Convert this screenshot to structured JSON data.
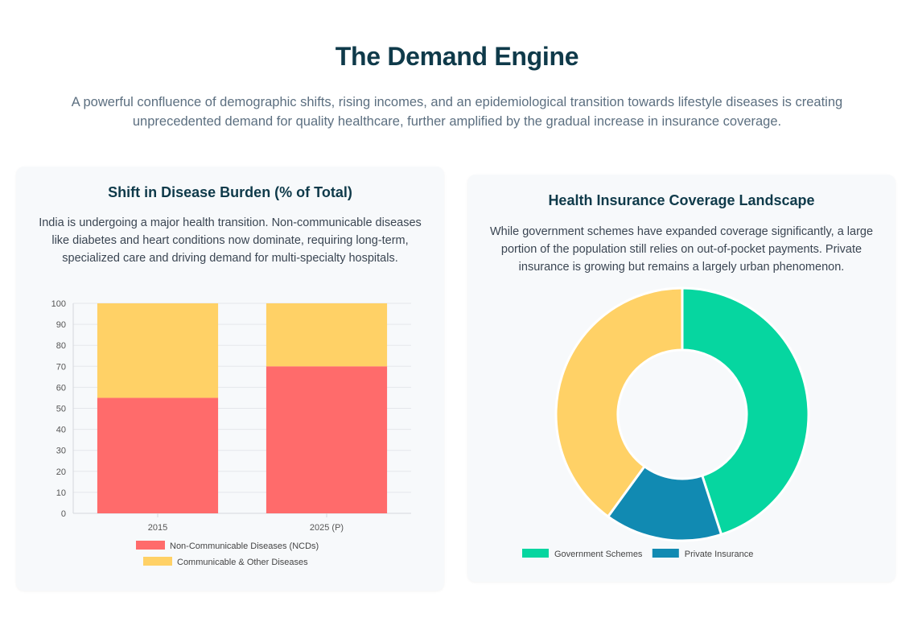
{
  "header": {
    "title": "The Demand Engine",
    "subtitle": "A powerful confluence of demographic shifts, rising incomes, and an epidemiological transition towards lifestyle diseases is creating unprecedented demand for quality healthcare, further amplified by the gradual increase in insurance coverage."
  },
  "left_card": {
    "title": "Shift in Disease Burden (% of Total)",
    "description": "India is undergoing a major health transition. Non-communicable diseases like diabetes and heart conditions now dominate, requiring long-term, specialized care and driving demand for multi-specialty hospitals."
  },
  "right_card": {
    "title": "Health Insurance Coverage Landscape",
    "description": "While government schemes have expanded coverage significantly, a large portion of the population still relies on out-of-pocket payments. Private insurance is growing but remains a largely urban phenomenon."
  },
  "chart_data": [
    {
      "type": "bar",
      "stacked": true,
      "title": "Shift in Disease Burden (% of Total)",
      "categories": [
        "2015",
        "2025 (P)"
      ],
      "series": [
        {
          "name": "Non-Communicable Diseases (NCDs)",
          "values": [
            55,
            70
          ],
          "color": "#ff6b6b"
        },
        {
          "name": "Communicable & Other Diseases",
          "values": [
            45,
            30
          ],
          "color": "#ffd166"
        }
      ],
      "ylim": [
        0,
        100
      ],
      "yticks": [
        0,
        10,
        20,
        30,
        40,
        50,
        60,
        70,
        80,
        90,
        100
      ],
      "xlabel": "",
      "ylabel": "",
      "legend": "bottom"
    },
    {
      "type": "pie",
      "donut": true,
      "title": "Health Insurance Coverage Landscape",
      "labels": [
        "Government Schemes",
        "Private Insurance",
        ""
      ],
      "legend_labels": [
        "Government Schemes",
        "Private Insurance"
      ],
      "values": [
        45,
        15,
        40
      ],
      "colors": [
        "#06d6a0",
        "#118ab2",
        "#ffd166"
      ],
      "legend": "bottom"
    }
  ]
}
